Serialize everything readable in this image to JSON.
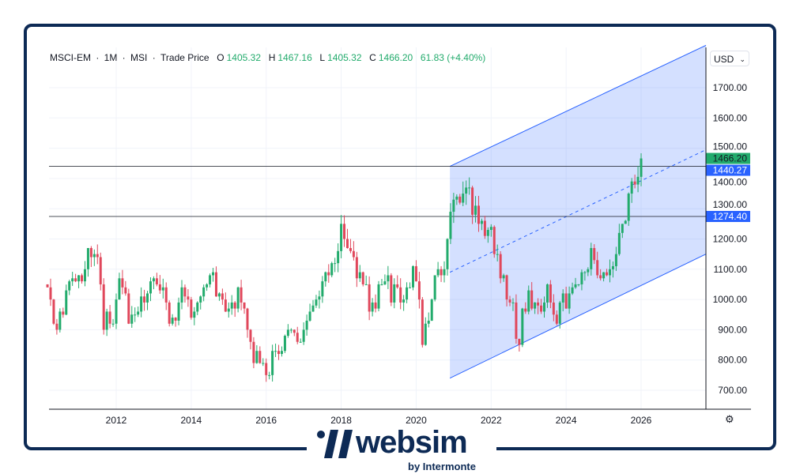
{
  "legend": {
    "symbol": "MSCI-EM",
    "interval": "1M",
    "source": "MSI",
    "price_type": "Trade Price",
    "o_label": "O",
    "open": "1405.32",
    "h_label": "H",
    "high": "1467.16",
    "l_label": "L",
    "low": "1405.32",
    "c_label": "C",
    "close": "1466.20",
    "change": "61.83 (+4.40%)"
  },
  "currency": "USD",
  "logo": {
    "word": "websim",
    "by": "by Intermonte"
  },
  "colors": {
    "up": "#22ab6c",
    "down": "#e0475b",
    "channel": "#2962ff",
    "frame": "#0d2a55"
  },
  "chart_data": {
    "type": "candlestick",
    "title": "MSCI-EM · 1M · MSI",
    "start": "2010-03",
    "closes": [
      1040,
      1000,
      920,
      900,
      960,
      950,
      1030,
      1060,
      1070,
      1060,
      1080,
      1060,
      1100,
      1170,
      1140,
      1150,
      1140,
      1050,
      900,
      960,
      920,
      920,
      1000,
      1070,
      1040,
      1020,
      920,
      950,
      950,
      960,
      1010,
      990,
      1020,
      1060,
      1070,
      1050,
      1030,
      1040,
      990,
      920,
      940,
      930,
      990,
      1040,
      1010,
      1000,
      940,
      960,
      990,
      1010,
      1040,
      1050,
      1080,
      1090,
      1010,
      1020,
      1000,
      960,
      970,
      990,
      970,
      1040,
      990,
      970,
      900,
      860,
      790,
      830,
      790,
      790,
      750,
      750,
      830,
      830,
      820,
      830,
      880,
      900,
      900,
      890,
      860,
      860,
      900,
      930,
      960,
      980,
      1000,
      1010,
      1060,
      1090,
      1080,
      1120,
      1120,
      1160,
      1250,
      1200,
      1170,
      1160,
      1140,
      1070,
      1090,
      1050,
      1050,
      960,
      990,
      970,
      1050,
      1050,
      1060,
      1080,
      990,
      1050,
      1040,
      990,
      1000,
      1040,
      1040,
      1110,
      1060,
      1000,
      850,
      920,
      930,
      1000,
      1080,
      1100,
      1080,
      1100,
      1200,
      1290,
      1330,
      1340,
      1320,
      1350,
      1370,
      1370,
      1280,
      1310,
      1250,
      1260,
      1210,
      1230,
      1240,
      1150,
      1150,
      1070,
      1080,
      1000,
      990,
      990,
      870,
      850,
      970,
      960,
      1030,
      970,
      990,
      980,
      960,
      990,
      1050,
      990,
      950,
      920,
      990,
      1020,
      970,
      1020,
      1040,
      1050,
      1050,
      1090,
      1090,
      1100,
      1170,
      1130,
      1080,
      1070,
      1090,
      1080,
      1100,
      1110,
      1150,
      1220,
      1250,
      1260,
      1350,
      1390,
      1380,
      1405.32,
      1466.2
    ],
    "first_open": 1050,
    "x_ticks": [
      "2012",
      "2014",
      "2016",
      "2018",
      "2020",
      "2022",
      "2024",
      "2026"
    ],
    "y_ticks": [
      "700.00",
      "800.00",
      "900.00",
      "1000.00",
      "1100.00",
      "1200.00",
      "1300.00",
      "1400.00",
      "1500.00",
      "1600.00",
      "1700.00"
    ],
    "ylim": [
      650,
      1790
    ],
    "xlim": [
      2010.2,
      2027.7
    ],
    "horizontal_lines": [
      {
        "value": 1440.27,
        "label": "1440.27"
      },
      {
        "value": 1274.4,
        "label": "1274.40"
      }
    ],
    "last_price_label": "1466.20",
    "channel": {
      "start": 2020.9,
      "end": 2027.7,
      "upper": [
        1440,
        1840
      ],
      "lower": [
        740,
        1150
      ],
      "mid": [
        1090,
        1495
      ]
    },
    "grid": true
  }
}
